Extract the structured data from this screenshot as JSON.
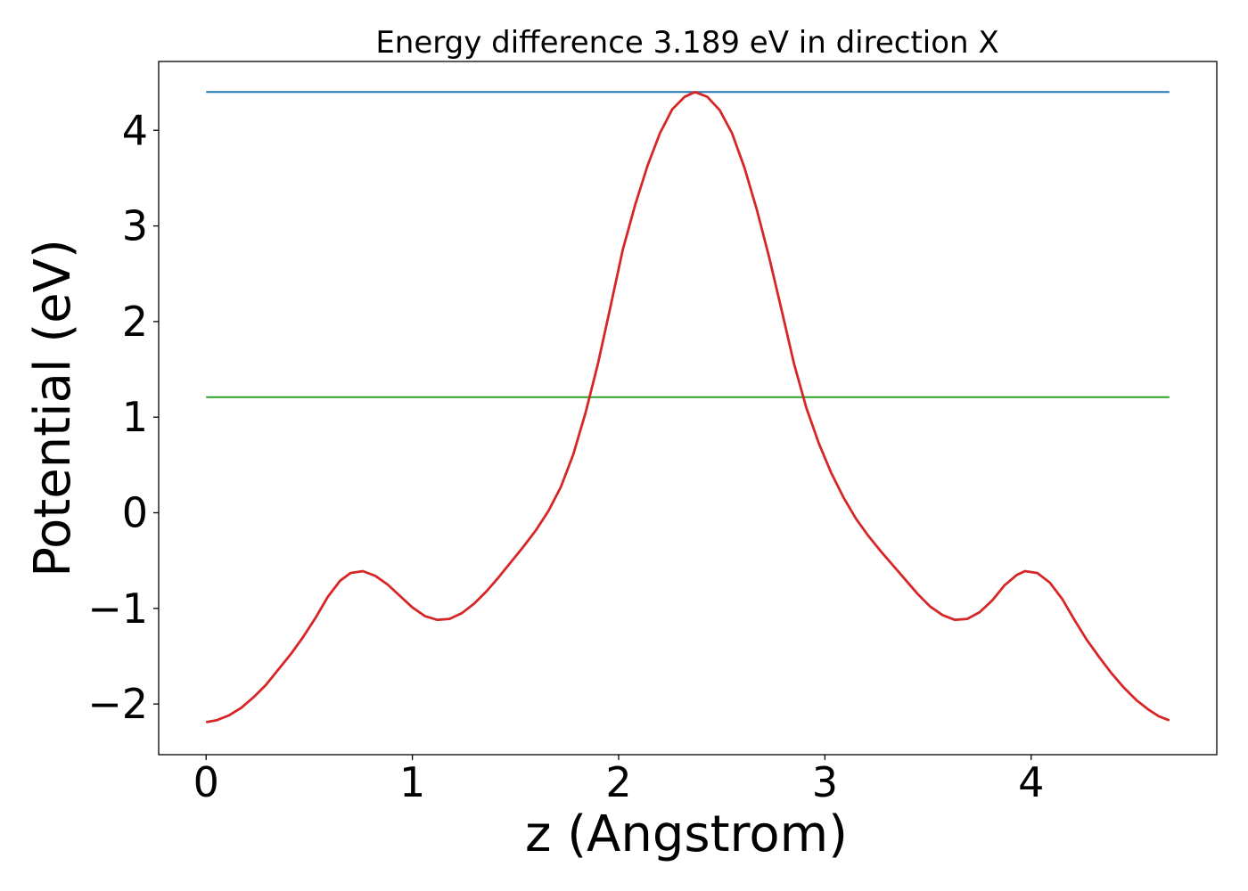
{
  "chart_data": {
    "type": "line",
    "title": "Energy difference 3.189 eV in direction X",
    "xlabel": "z (Angstrom)",
    "ylabel": "Potential (eV)",
    "xlim": [
      -0.23,
      4.9
    ],
    "ylim": [
      -2.53,
      4.72
    ],
    "xticks": [
      0,
      1,
      2,
      3,
      4
    ],
    "xtick_labels": [
      "0",
      "1",
      "2",
      "3",
      "4"
    ],
    "yticks": [
      -2,
      -1,
      0,
      1,
      2,
      3,
      4
    ],
    "ytick_labels": [
      "−2",
      "−1",
      "0",
      "1",
      "2",
      "3",
      "4"
    ],
    "grid": false,
    "series": [
      {
        "color": "#1f77b4",
        "x": [
          0,
          4.67
        ],
        "y": [
          4.4,
          4.4
        ]
      },
      {
        "color": "#2ca02c",
        "x": [
          0,
          4.67
        ],
        "y": [
          1.21,
          1.21
        ]
      },
      {
        "color": "#d62728",
        "x": [
          0.0,
          0.05,
          0.11,
          0.17,
          0.23,
          0.29,
          0.35,
          0.41,
          0.47,
          0.53,
          0.59,
          0.65,
          0.7,
          0.76,
          0.82,
          0.88,
          0.94,
          1.0,
          1.06,
          1.12,
          1.18,
          1.24,
          1.3,
          1.36,
          1.42,
          1.48,
          1.54,
          1.6,
          1.66,
          1.72,
          1.78,
          1.84,
          1.9,
          1.96,
          2.02,
          2.08,
          2.14,
          2.2,
          2.26,
          2.32,
          2.37,
          2.43,
          2.49,
          2.55,
          2.61,
          2.67,
          2.73,
          2.79,
          2.85,
          2.91,
          2.97,
          3.03,
          3.09,
          3.15,
          3.21,
          3.27,
          3.33,
          3.39,
          3.45,
          3.51,
          3.57,
          3.63,
          3.69,
          3.75,
          3.81,
          3.87,
          3.93,
          3.97,
          4.03,
          4.09,
          4.15,
          4.21,
          4.27,
          4.33,
          4.39,
          4.45,
          4.51,
          4.57,
          4.62,
          4.67
        ],
        "y": [
          -2.19,
          -2.17,
          -2.12,
          -2.04,
          -1.93,
          -1.8,
          -1.64,
          -1.48,
          -1.3,
          -1.1,
          -0.88,
          -0.71,
          -0.63,
          -0.61,
          -0.66,
          -0.75,
          -0.87,
          -0.99,
          -1.08,
          -1.12,
          -1.11,
          -1.05,
          -0.95,
          -0.82,
          -0.67,
          -0.51,
          -0.35,
          -0.18,
          0.02,
          0.27,
          0.61,
          1.05,
          1.56,
          2.15,
          2.75,
          3.22,
          3.63,
          3.97,
          4.22,
          4.35,
          4.4,
          4.35,
          4.21,
          3.97,
          3.61,
          3.17,
          2.67,
          2.12,
          1.56,
          1.1,
          0.73,
          0.42,
          0.16,
          -0.06,
          -0.24,
          -0.4,
          -0.55,
          -0.7,
          -0.85,
          -0.98,
          -1.07,
          -1.12,
          -1.11,
          -1.04,
          -0.92,
          -0.76,
          -0.65,
          -0.61,
          -0.63,
          -0.73,
          -0.9,
          -1.12,
          -1.33,
          -1.51,
          -1.68,
          -1.83,
          -1.96,
          -2.06,
          -2.13,
          -2.17
        ]
      }
    ]
  }
}
